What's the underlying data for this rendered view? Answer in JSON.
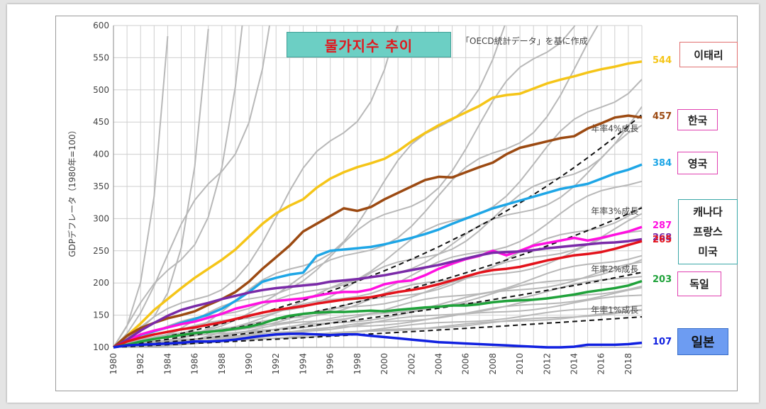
{
  "slide": {
    "title": "물가지수 추이",
    "source_note": "「OECD統計データ」を基に作成",
    "labels": {
      "italy": "이태리",
      "korea": "한국",
      "uk": "영국",
      "canada": "캐나다",
      "france": "프랑스",
      "usa": "미국",
      "germany": "독일",
      "japan": "일본"
    }
  },
  "chart_data": {
    "type": "line",
    "title": "물가지수 추이",
    "subtitle": "「OECD統計データ」を基に作成",
    "xlabel": "",
    "ylabel": "GDPデフレータ（1980年=100）",
    "xlim": [
      1980,
      2019
    ],
    "ylim": [
      100,
      600
    ],
    "x_ticks": [
      1980,
      1982,
      1984,
      1986,
      1988,
      1990,
      1992,
      1994,
      1996,
      1998,
      2000,
      2002,
      2004,
      2006,
      2008,
      2010,
      2012,
      2014,
      2016,
      2018
    ],
    "y_ticks": [
      100,
      150,
      200,
      250,
      300,
      350,
      400,
      450,
      500,
      550,
      600
    ],
    "grid": true,
    "x": [
      1980,
      1981,
      1982,
      1983,
      1984,
      1985,
      1986,
      1987,
      1988,
      1989,
      1990,
      1991,
      1992,
      1993,
      1994,
      1995,
      1996,
      1997,
      1998,
      1999,
      2000,
      2001,
      2002,
      2003,
      2004,
      2005,
      2006,
      2007,
      2008,
      2009,
      2010,
      2011,
      2012,
      2013,
      2014,
      2015,
      2016,
      2017,
      2018,
      2019
    ],
    "series": [
      {
        "name": "이태리",
        "end_label": "544",
        "color": "#f5c518",
        "width": 3.5,
        "values": [
          100,
          118,
          137,
          158,
          175,
          192,
          208,
          222,
          236,
          252,
          272,
          292,
          308,
          320,
          330,
          348,
          362,
          372,
          380,
          386,
          393,
          405,
          420,
          433,
          445,
          455,
          465,
          475,
          488,
          492,
          494,
          502,
          510,
          516,
          521,
          527,
          532,
          536,
          541,
          544
        ]
      },
      {
        "name": "한국",
        "end_label": "457",
        "color": "#9c4a12",
        "width": 3.5,
        "values": [
          100,
          118,
          130,
          138,
          145,
          150,
          156,
          166,
          175,
          186,
          202,
          222,
          240,
          258,
          280,
          292,
          304,
          316,
          312,
          318,
          330,
          340,
          350,
          360,
          365,
          364,
          372,
          380,
          387,
          400,
          410,
          415,
          420,
          425,
          428,
          440,
          448,
          457,
          460,
          457
        ]
      },
      {
        "name": "영국",
        "end_label": "384",
        "color": "#1ea6e6",
        "width": 3.5,
        "values": [
          100,
          111,
          119,
          125,
          131,
          138,
          144,
          151,
          160,
          172,
          186,
          202,
          208,
          213,
          216,
          242,
          250,
          252,
          254,
          256,
          260,
          265,
          270,
          276,
          283,
          292,
          300,
          308,
          316,
          322,
          328,
          334,
          340,
          346,
          350,
          354,
          362,
          370,
          376,
          384
        ]
      },
      {
        "name": "캐나다",
        "end_label": "287",
        "color": "#ff10e0",
        "width": 3.5,
        "values": [
          100,
          110,
          120,
          126,
          131,
          136,
          140,
          146,
          152,
          160,
          165,
          170,
          172,
          174,
          176,
          180,
          184,
          186,
          186,
          190,
          198,
          202,
          204,
          212,
          222,
          230,
          237,
          242,
          250,
          243,
          250,
          258,
          262,
          266,
          270,
          266,
          270,
          275,
          280,
          287
        ]
      },
      {
        "name": "프랑스",
        "end_label": "268",
        "color": "#7a2aa8",
        "width": 3.5,
        "values": [
          100,
          112,
          126,
          138,
          149,
          158,
          164,
          169,
          175,
          180,
          185,
          189,
          192,
          194,
          196,
          198,
          202,
          204,
          206,
          209,
          212,
          216,
          220,
          224,
          228,
          233,
          238,
          243,
          247,
          248,
          249,
          251,
          254,
          256,
          258,
          260,
          262,
          263,
          265,
          268
        ]
      },
      {
        "name": "미국",
        "end_label": "265",
        "color": "#e3121b",
        "width": 3.5,
        "values": [
          100,
          109,
          115,
          120,
          124,
          128,
          131,
          135,
          139,
          144,
          149,
          154,
          158,
          161,
          164,
          168,
          171,
          174,
          176,
          178,
          182,
          186,
          189,
          193,
          198,
          204,
          210,
          216,
          220,
          222,
          225,
          230,
          235,
          239,
          243,
          245,
          248,
          253,
          259,
          265
        ]
      },
      {
        "name": "독일",
        "end_label": "203",
        "color": "#1fa23a",
        "width": 3.5,
        "values": [
          100,
          104,
          109,
          113,
          116,
          119,
          122,
          124,
          126,
          129,
          132,
          137,
          144,
          149,
          152,
          154,
          155,
          155,
          156,
          157,
          156,
          158,
          160,
          162,
          163,
          165,
          165,
          167,
          170,
          172,
          173,
          174,
          176,
          179,
          182,
          186,
          189,
          192,
          196,
          203
        ]
      },
      {
        "name": "일본",
        "end_label": "107",
        "color": "#1020e0",
        "width": 3.5,
        "values": [
          100,
          103,
          104,
          105,
          106,
          107,
          109,
          109,
          110,
          112,
          115,
          118,
          120,
          121,
          121,
          120,
          119,
          120,
          120,
          118,
          116,
          114,
          112,
          110,
          108,
          107,
          106,
          105,
          104,
          103,
          102,
          101,
          100,
          100,
          101,
          104,
          104,
          104,
          105,
          107
        ]
      }
    ],
    "reference_lines": [
      {
        "name": "年率4%成長",
        "values": [
          100,
          104,
          108.2,
          112.5,
          117,
          121.7,
          126.5,
          131.6,
          136.9,
          142.3,
          148,
          153.9,
          160.1,
          166.5,
          173.2,
          180.1,
          187.3,
          194.8,
          202.6,
          210.7,
          219.1,
          227.9,
          237,
          246.5,
          256.3,
          266.6,
          277.2,
          288.3,
          299.8,
          311.9,
          324.3,
          337.3,
          350.8,
          364.8,
          379.4,
          394.6,
          410.4,
          426.8,
          443.9,
          461.6
        ]
      },
      {
        "name": "年率3%成長",
        "values": [
          100,
          103,
          106.1,
          109.3,
          112.6,
          115.9,
          119.4,
          123,
          126.7,
          130.5,
          134.4,
          138.4,
          142.6,
          146.9,
          151.3,
          155.8,
          160.5,
          165.3,
          170.2,
          175.4,
          180.6,
          186,
          191.6,
          197.4,
          203.3,
          209.4,
          215.7,
          222.1,
          228.8,
          235.7,
          242.7,
          250,
          257.5,
          265.2,
          273.2,
          281.4,
          289.8,
          298.5,
          307.5,
          316.7
        ]
      },
      {
        "name": "年率2%成長",
        "values": [
          100,
          102,
          104,
          106.1,
          108.2,
          110.4,
          112.6,
          114.9,
          117.2,
          119.5,
          121.9,
          124.3,
          126.8,
          129.4,
          131.9,
          134.6,
          137.3,
          140,
          142.8,
          145.7,
          148.6,
          151.6,
          154.6,
          157.7,
          160.8,
          164.1,
          167.3,
          170.7,
          174.1,
          177.6,
          181.1,
          184.8,
          188.5,
          192.2,
          196,
          199.9,
          203.9,
          208,
          212.2,
          216.4
        ]
      },
      {
        "name": "年率1%成長",
        "values": [
          100,
          101,
          102,
          103,
          104.1,
          105.1,
          106.2,
          107.2,
          108.3,
          109.4,
          110.5,
          111.6,
          112.7,
          113.8,
          114.9,
          116.1,
          117.3,
          118.4,
          119.6,
          120.8,
          122,
          123.2,
          124.5,
          125.7,
          127,
          128.2,
          129.5,
          130.8,
          132.1,
          133.4,
          134.8,
          136.1,
          137.5,
          138.8,
          140.2,
          141.6,
          143.1,
          144.5,
          145.9,
          147.4
        ]
      }
    ],
    "background_series_color": "#b8b8b8",
    "reference_line_color": "#111111",
    "legend": "none"
  }
}
